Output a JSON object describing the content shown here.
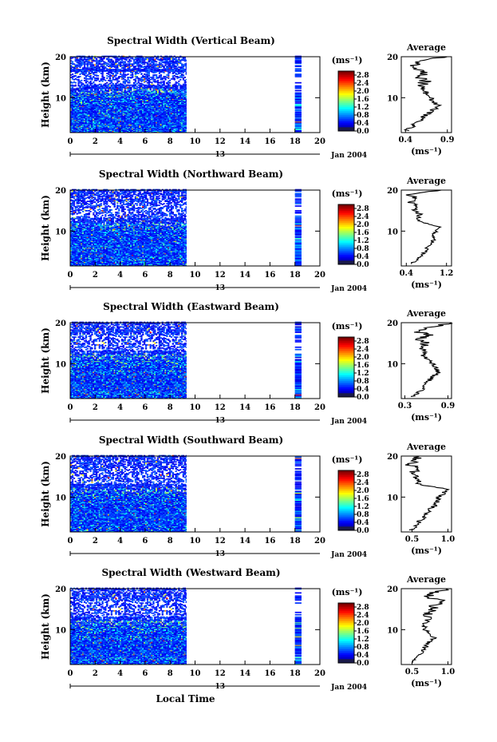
{
  "chart_data": {
    "type": "heatmap",
    "shared": {
      "xlabel": "Local Time",
      "xticks": [
        "0",
        "2",
        "4",
        "6",
        "8",
        "10",
        "12",
        "14",
        "16",
        "18",
        "20"
      ],
      "xlim": [
        0,
        20
      ],
      "date_day": "13",
      "date_label": "Jan 2004",
      "ylabel": "Height (km)",
      "yticks": [
        "10",
        "20"
      ],
      "ylim": [
        1.5,
        20
      ],
      "colorbar_unit": "(ms⁻¹)",
      "colorbar_ticks": [
        "0.0",
        "0.4",
        "0.8",
        "1.2",
        "1.6",
        "2.0",
        "2.4",
        "2.8"
      ],
      "colorbar_range": [
        0.0,
        3.0
      ],
      "avg_title": "Average",
      "avg_xlabel": "(ms⁻¹)",
      "data_segments": [
        [
          0,
          9.3
        ],
        [
          18.0,
          18.5
        ]
      ]
    },
    "panels": [
      {
        "title": "Spectral Width (Vertical Beam)",
        "avg_xticks": [
          "0.4",
          "0.9"
        ],
        "avg_xlim": [
          0.35,
          0.95
        ],
        "avg_profile": [
          {
            "h": 2,
            "v": 0.42
          },
          {
            "h": 3,
            "v": 0.48
          },
          {
            "h": 4,
            "v": 0.55
          },
          {
            "h": 5,
            "v": 0.6
          },
          {
            "h": 6,
            "v": 0.66
          },
          {
            "h": 7,
            "v": 0.72
          },
          {
            "h": 8,
            "v": 0.8
          },
          {
            "h": 9,
            "v": 0.74
          },
          {
            "h": 10,
            "v": 0.7
          },
          {
            "h": 11,
            "v": 0.65
          },
          {
            "h": 12,
            "v": 0.62
          },
          {
            "h": 13,
            "v": 0.58
          },
          {
            "h": 14,
            "v": 0.64
          },
          {
            "h": 15,
            "v": 0.57
          },
          {
            "h": 16,
            "v": 0.6
          },
          {
            "h": 17,
            "v": 0.55
          },
          {
            "h": 18,
            "v": 0.5
          },
          {
            "h": 19,
            "v": 0.62
          },
          {
            "h": 20,
            "v": 0.9
          }
        ]
      },
      {
        "title": "Spectral Width (Northward Beam)",
        "avg_xticks": [
          "0.4",
          "1.2"
        ],
        "avg_xlim": [
          0.3,
          1.3
        ],
        "avg_profile": [
          {
            "h": 2,
            "v": 0.5
          },
          {
            "h": 3,
            "v": 0.62
          },
          {
            "h": 4,
            "v": 0.7
          },
          {
            "h": 5,
            "v": 0.78
          },
          {
            "h": 6,
            "v": 0.82
          },
          {
            "h": 7,
            "v": 0.9
          },
          {
            "h": 8,
            "v": 0.95
          },
          {
            "h": 9,
            "v": 0.92
          },
          {
            "h": 10,
            "v": 1.0
          },
          {
            "h": 11,
            "v": 1.05
          },
          {
            "h": 12,
            "v": 0.75
          },
          {
            "h": 13,
            "v": 0.6
          },
          {
            "h": 14,
            "v": 0.7
          },
          {
            "h": 15,
            "v": 0.55
          },
          {
            "h": 16,
            "v": 0.62
          },
          {
            "h": 17,
            "v": 0.5
          },
          {
            "h": 18,
            "v": 0.58
          },
          {
            "h": 19,
            "v": 0.45
          },
          {
            "h": 20,
            "v": 1.1
          }
        ]
      },
      {
        "title": "Spectral Width (Eastward Beam)",
        "avg_xticks": [
          "0.3",
          "0.9"
        ],
        "avg_xlim": [
          0.25,
          0.95
        ],
        "avg_profile": [
          {
            "h": 2,
            "v": 0.4
          },
          {
            "h": 3,
            "v": 0.48
          },
          {
            "h": 4,
            "v": 0.55
          },
          {
            "h": 5,
            "v": 0.6
          },
          {
            "h": 6,
            "v": 0.64
          },
          {
            "h": 7,
            "v": 0.7
          },
          {
            "h": 8,
            "v": 0.78
          },
          {
            "h": 9,
            "v": 0.72
          },
          {
            "h": 10,
            "v": 0.68
          },
          {
            "h": 11,
            "v": 0.62
          },
          {
            "h": 12,
            "v": 0.55
          },
          {
            "h": 13,
            "v": 0.6
          },
          {
            "h": 14,
            "v": 0.52
          },
          {
            "h": 15,
            "v": 0.58
          },
          {
            "h": 16,
            "v": 0.5
          },
          {
            "h": 17,
            "v": 0.62
          },
          {
            "h": 18,
            "v": 0.45
          },
          {
            "h": 19,
            "v": 0.7
          },
          {
            "h": 20,
            "v": 0.92
          }
        ]
      },
      {
        "title": "Spectral Width (Southward Beam)",
        "avg_xticks": [
          "0.5",
          "1.0"
        ],
        "avg_xlim": [
          0.35,
          1.05
        ],
        "avg_profile": [
          {
            "h": 2,
            "v": 0.48
          },
          {
            "h": 3,
            "v": 0.55
          },
          {
            "h": 4,
            "v": 0.6
          },
          {
            "h": 5,
            "v": 0.66
          },
          {
            "h": 6,
            "v": 0.7
          },
          {
            "h": 7,
            "v": 0.75
          },
          {
            "h": 8,
            "v": 0.82
          },
          {
            "h": 9,
            "v": 0.85
          },
          {
            "h": 10,
            "v": 0.88
          },
          {
            "h": 11,
            "v": 0.95
          },
          {
            "h": 12,
            "v": 0.98
          },
          {
            "h": 13,
            "v": 0.62
          },
          {
            "h": 14,
            "v": 0.55
          },
          {
            "h": 15,
            "v": 0.6
          },
          {
            "h": 16,
            "v": 0.5
          },
          {
            "h": 17,
            "v": 0.58
          },
          {
            "h": 18,
            "v": 0.45
          },
          {
            "h": 19,
            "v": 0.55
          },
          {
            "h": 20,
            "v": 0.6
          }
        ]
      },
      {
        "title": "Spectral Width (Westward Beam)",
        "avg_xticks": [
          "0.5",
          "1.0"
        ],
        "avg_xlim": [
          0.35,
          1.05
        ],
        "avg_profile": [
          {
            "h": 2,
            "v": 0.5
          },
          {
            "h": 3,
            "v": 0.55
          },
          {
            "h": 4,
            "v": 0.6
          },
          {
            "h": 5,
            "v": 0.64
          },
          {
            "h": 6,
            "v": 0.7
          },
          {
            "h": 7,
            "v": 0.74
          },
          {
            "h": 8,
            "v": 0.8
          },
          {
            "h": 9,
            "v": 0.72
          },
          {
            "h": 10,
            "v": 0.68
          },
          {
            "h": 11,
            "v": 0.66
          },
          {
            "h": 12,
            "v": 0.7
          },
          {
            "h": 13,
            "v": 0.75
          },
          {
            "h": 14,
            "v": 0.72
          },
          {
            "h": 15,
            "v": 0.78
          },
          {
            "h": 16,
            "v": 0.8
          },
          {
            "h": 17,
            "v": 0.95
          },
          {
            "h": 18,
            "v": 0.7
          },
          {
            "h": 19,
            "v": 0.8
          },
          {
            "h": 20,
            "v": 1.0
          }
        ]
      }
    ]
  }
}
